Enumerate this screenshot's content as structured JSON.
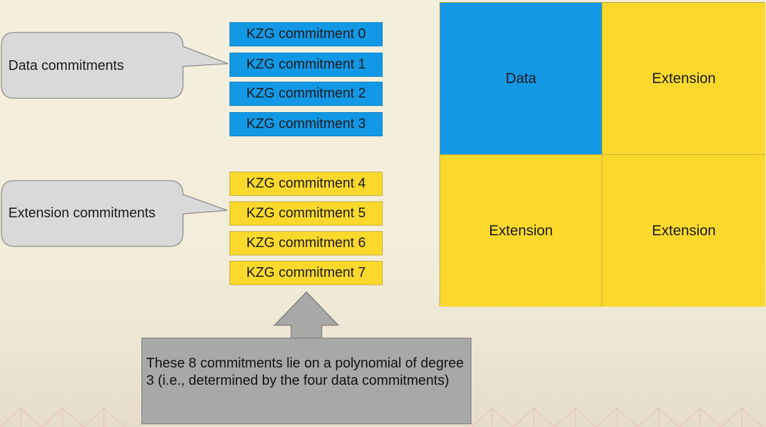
{
  "data_callout": {
    "label": "Data commitments"
  },
  "extension_callout": {
    "label": "Extension commitments"
  },
  "commitments": [
    {
      "label": "KZG commitment 0",
      "kind": "data"
    },
    {
      "label": "KZG commitment 1",
      "kind": "data"
    },
    {
      "label": "KZG commitment 2",
      "kind": "data"
    },
    {
      "label": "KZG commitment 3",
      "kind": "data"
    },
    {
      "label": "KZG commitment 4",
      "kind": "extension"
    },
    {
      "label": "KZG commitment 5",
      "kind": "extension"
    },
    {
      "label": "KZG commitment 6",
      "kind": "extension"
    },
    {
      "label": "KZG commitment 7",
      "kind": "extension"
    }
  ],
  "grid": {
    "top_left": "Data",
    "top_right": "Extension",
    "bottom_left": "Extension",
    "bottom_right": "Extension"
  },
  "note": {
    "text": "These 8 commitments lie on a polynomial of degree 3 (i.e., determined by the four data commitments)"
  },
  "colors": {
    "data": "#1398e6",
    "extension": "#fbd92c",
    "callout": "#d9d9d9",
    "note": "#a8a8a6"
  }
}
